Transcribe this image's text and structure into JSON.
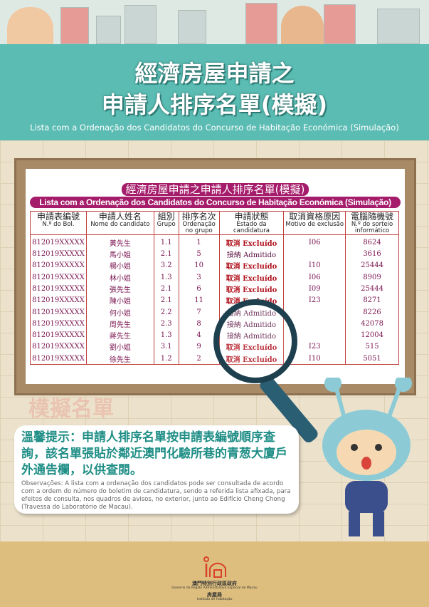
{
  "header": {
    "title_line1": "經濟房屋申請之",
    "title_line2": "申請人排序名單(模擬)",
    "subtitle_pt": "Lista com a Ordenação dos Candidatos do Concurso de Habitação Económica (Simulação)"
  },
  "board": {
    "title_zh": "經濟房屋申請之申請人排序名單(模擬)",
    "title_pt": "Lista com a Ordenação dos Candidatos do Concurso de Habitação Económica (Simulação)",
    "watermark": "模擬名單",
    "columns": [
      {
        "zh": "申請表編號",
        "pt": "N.º do Bol."
      },
      {
        "zh": "申請人姓名",
        "pt": "Nome do candidato"
      },
      {
        "zh": "組別",
        "pt": "Grupo"
      },
      {
        "zh": "排序名次",
        "pt": "Ordenação no grupo"
      },
      {
        "zh": "申請狀態",
        "pt": "Estado da candidatura"
      },
      {
        "zh": "取消資格原因",
        "pt": "Motivo de exclusão"
      },
      {
        "zh": "電腦隨機號",
        "pt": "N.º do sorteio informático"
      }
    ],
    "rows": [
      [
        "812019XXXXX",
        "黃先生",
        "1.1",
        "1",
        "取消 Excluído",
        "I06",
        "8624"
      ],
      [
        "812019XXXXX",
        "馬小姐",
        "2.1",
        "5",
        "接納 Admitido",
        "",
        "3616"
      ],
      [
        "812019XXXXX",
        "楊小姐",
        "3.2",
        "10",
        "取消 Excluído",
        "I10",
        "25444"
      ],
      [
        "812019XXXXX",
        "林小姐",
        "1.3",
        "3",
        "取消 Excluído",
        "I06",
        "8909"
      ],
      [
        "812019XXXXX",
        "張先生",
        "2.1",
        "6",
        "取消 Excluído",
        "I09",
        "25444"
      ],
      [
        "812019XXXXX",
        "陳小姐",
        "2.1",
        "11",
        "取消 Excluído",
        "I23",
        "8271"
      ],
      [
        "812019XXXXX",
        "何小姐",
        "2.2",
        "7",
        "接納 Admitido",
        "",
        "8226"
      ],
      [
        "812019XXXXX",
        "周先生",
        "2.3",
        "8",
        "接納 Admitido",
        "",
        "42078"
      ],
      [
        "812019XXXXX",
        "蔣先生",
        "1.3",
        "4",
        "接納 Admitido",
        "",
        "12004"
      ],
      [
        "812019XXXXX",
        "劉小姐",
        "3.1",
        "9",
        "取消 Excluído",
        "I23",
        "515"
      ],
      [
        "812019XXXXX",
        "徐先生",
        "1.2",
        "2",
        "取消 Excluído",
        "I10",
        "5051"
      ]
    ]
  },
  "notice": {
    "zh": "溫馨提示：申請人排序名單按申請表編號順序查詢，該名單張貼於鄰近澳門化驗所巷的青葱大廈戶外通告欄，以供查閱。",
    "pt": "Observações: A lista com a ordenação dos candidatos pode ser consultada de acordo com a ordem do número do boletim de candidatura, sendo a referida lista afixada, para efeitos de consulta, nos quadros de avisos, no exterior, junto ao Edifício Cheng Chong (Travessa do Laboratório de Macau)."
  },
  "footer": {
    "gov_zh": "澳門特別行政區政府",
    "gov_pt": "Governo da Região Administrativa Especial de Macau",
    "dept_zh": "房屋局",
    "dept_pt": "Instituto de Habitação"
  },
  "colors": {
    "teal": "#5bbcb3",
    "magenta": "#a51c6b",
    "excluded": "#b0121e",
    "footer": "#ddbe7e"
  }
}
